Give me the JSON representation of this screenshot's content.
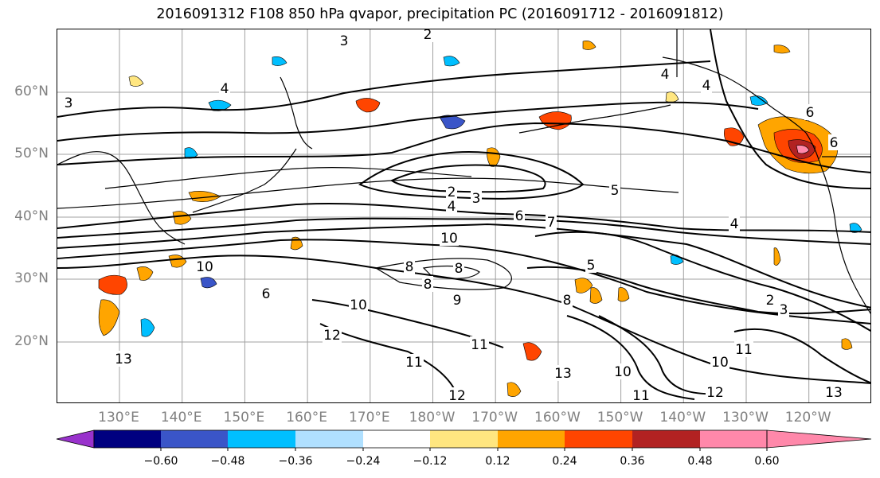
{
  "title": "2016091312 F108 850 hPa qvapor, precipitation PC (2016091712 - 2016091812)",
  "axes": {
    "lat_labels": [
      "60°N",
      "50°N",
      "40°N",
      "30°N",
      "20°N"
    ],
    "lon_labels": [
      "130°E",
      "140°E",
      "150°E",
      "160°E",
      "170°E",
      "180°W",
      "170°W",
      "160°W",
      "150°W",
      "140°W",
      "130°W",
      "120°W"
    ],
    "label_color": "#808080",
    "grid": true
  },
  "contour_labels": [
    {
      "text": "3",
      "region": "north-central top"
    },
    {
      "text": "2",
      "region": "top edge near 170°E"
    },
    {
      "text": "4",
      "region": "Bering Sea west"
    },
    {
      "text": "3",
      "region": "western edge near 60°N"
    },
    {
      "text": "4",
      "region": "Gulf of Alaska north"
    },
    {
      "text": "4",
      "region": "Gulf of Alaska north"
    },
    {
      "text": "6",
      "region": "British Columbia coast"
    },
    {
      "text": "6",
      "region": "Pacific Northwest"
    },
    {
      "text": "2",
      "region": "central North Pacific high"
    },
    {
      "text": "3",
      "region": "central North Pacific high"
    },
    {
      "text": "4",
      "region": "central North Pacific"
    },
    {
      "text": "5",
      "region": "northeast Pacific"
    },
    {
      "text": "6",
      "region": "central Pacific 40°N"
    },
    {
      "text": "7",
      "region": "central Pacific 40°N"
    },
    {
      "text": "4",
      "region": "US west coast"
    },
    {
      "text": "10",
      "region": "near 180° 37°N"
    },
    {
      "text": "10",
      "region": "west Pacific 32°N"
    },
    {
      "text": "8",
      "region": "near 180° 32°N"
    },
    {
      "text": "8",
      "region": "near 175°W 32°N"
    },
    {
      "text": "8",
      "region": "near 180° 30°N"
    },
    {
      "text": "9",
      "region": "near 180° 27°N"
    },
    {
      "text": "6",
      "region": "western Pacific 27°N"
    },
    {
      "text": "5",
      "region": "near 155°W 31°N"
    },
    {
      "text": "8",
      "region": "near 160°W 27°N"
    },
    {
      "text": "10",
      "region": "near 172°E 26°N"
    },
    {
      "text": "12",
      "region": "near 168°E 20°N"
    },
    {
      "text": "13",
      "region": "west Pacific 17°N"
    },
    {
      "text": "2",
      "region": "off California 27°N"
    },
    {
      "text": "3",
      "region": "off California 26°N"
    },
    {
      "text": "11",
      "region": "near 175°W 18°N"
    },
    {
      "text": "11",
      "region": "near 172°W 18°N"
    },
    {
      "text": "10",
      "region": "near 150°W 16°N"
    },
    {
      "text": "13",
      "region": "near 158°W 14°N"
    },
    {
      "text": "11",
      "region": "near 132°W 19°N"
    },
    {
      "text": "10",
      "region": "near 132°W 17°N"
    },
    {
      "text": "11",
      "region": "near 146°W 12°N"
    },
    {
      "text": "12",
      "region": "near 130°W 13°N"
    },
    {
      "text": "12",
      "region": "near 176°W 12°N"
    },
    {
      "text": "13",
      "region": "near 118°W 12°N"
    }
  ],
  "colorbar": {
    "colors": [
      "#9932cc",
      "#000080",
      "#3a55c8",
      "#00bfff",
      "#b0e0ff",
      "#ffffff",
      "#ffe680",
      "#ffa500",
      "#ff4500",
      "#b22222",
      "#ff88aa"
    ],
    "ticks": [
      "−0.60",
      "−0.48",
      "−0.36",
      "−0.24",
      "−0.12",
      "0.12",
      "0.24",
      "0.36",
      "0.48",
      "0.60"
    ],
    "extend": "both"
  }
}
